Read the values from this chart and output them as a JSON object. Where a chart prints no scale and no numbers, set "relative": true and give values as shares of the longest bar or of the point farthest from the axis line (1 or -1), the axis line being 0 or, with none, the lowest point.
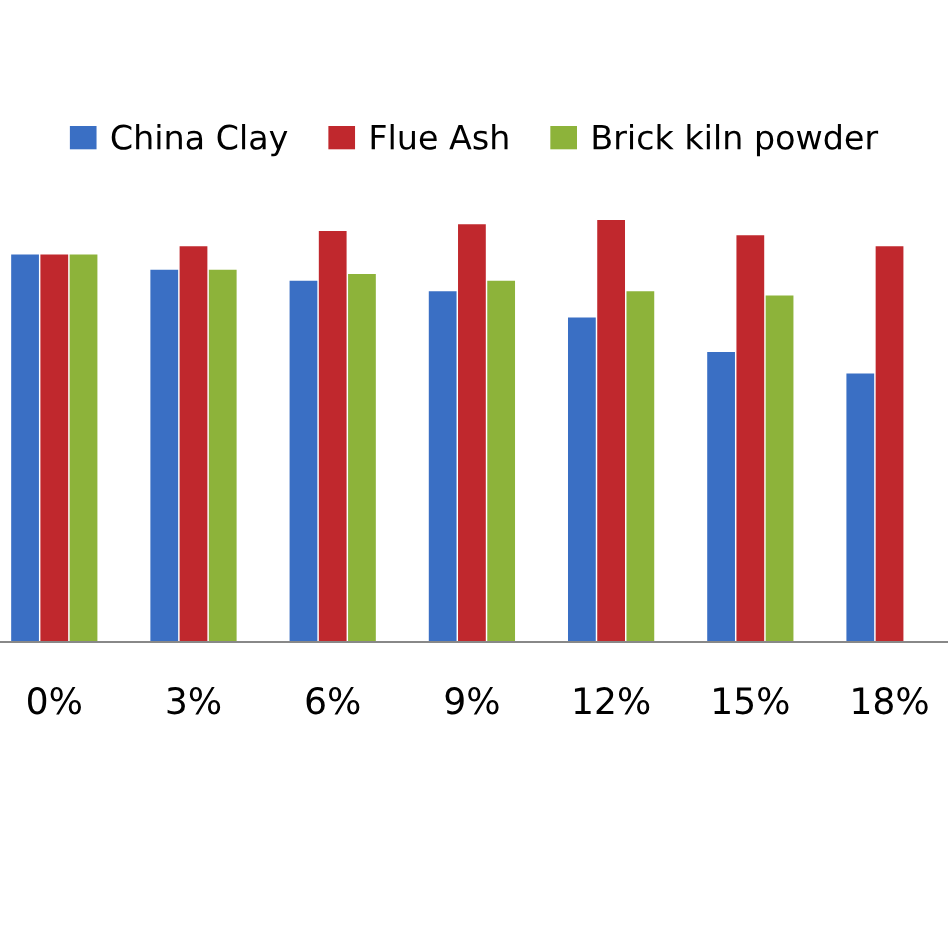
{
  "chart_data": {
    "type": "bar",
    "relative": true,
    "categories": [
      "0%",
      "3%",
      "6%",
      "9%",
      "12%",
      "15%",
      "18%"
    ],
    "series": [
      {
        "name": "China Clay",
        "color": "#3a6fc4",
        "values": [
          0.918,
          0.882,
          0.856,
          0.831,
          0.769,
          0.687,
          0.636
        ]
      },
      {
        "name": "Flue Ash",
        "color": "#c0282d",
        "values": [
          0.918,
          0.938,
          0.974,
          0.99,
          1,
          0.964,
          0.938
        ]
      },
      {
        "name": "Brick kiln powder",
        "color": "#8db33a",
        "values": [
          0.918,
          0.882,
          0.872,
          0.856,
          0.831,
          0.821,
          null
        ]
      }
    ],
    "legend": "top",
    "grid": false
  }
}
